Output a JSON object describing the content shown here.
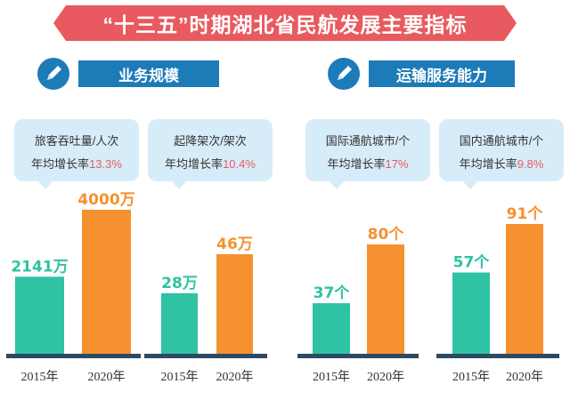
{
  "title": "“十三五”时期湖北省民航发展主要指标",
  "sections": [
    {
      "label": "业务规模",
      "icon": "pencil-icon"
    },
    {
      "label": "运输服务能力",
      "icon": "pencil-icon"
    }
  ],
  "colors": {
    "base": "#2fc2a3",
    "target": "#f5912f",
    "banner": "#e85a5f",
    "section": "#1d7bb8"
  },
  "chart_data": [
    {
      "type": "bar",
      "label": "旅客吞吐量/人次",
      "growth_label": "年均增长率",
      "growth": "13.3%",
      "categories": [
        "2015年",
        "2020年"
      ],
      "values": [
        2141,
        4000
      ],
      "value_labels": [
        "2141万",
        "4000万"
      ],
      "unit": "万"
    },
    {
      "type": "bar",
      "label": "起降架次/架次",
      "growth_label": "年均增长率",
      "growth": "10.4%",
      "categories": [
        "2015年",
        "2020年"
      ],
      "values": [
        28,
        46
      ],
      "value_labels": [
        "28万",
        "46万"
      ],
      "unit": "万"
    },
    {
      "type": "bar",
      "label": "国际通航城市/个",
      "growth_label": "年均增长率",
      "growth": "17%",
      "categories": [
        "2015年",
        "2020年"
      ],
      "values": [
        37,
        80
      ],
      "value_labels": [
        "37个",
        "80个"
      ],
      "unit": "个"
    },
    {
      "type": "bar",
      "label": "国内通航城市/个",
      "growth_label": "年均增长率",
      "growth": "9.8%",
      "categories": [
        "2015年",
        "2020年"
      ],
      "values": [
        57,
        91
      ],
      "value_labels": [
        "57个",
        "91个"
      ],
      "unit": "个"
    }
  ]
}
